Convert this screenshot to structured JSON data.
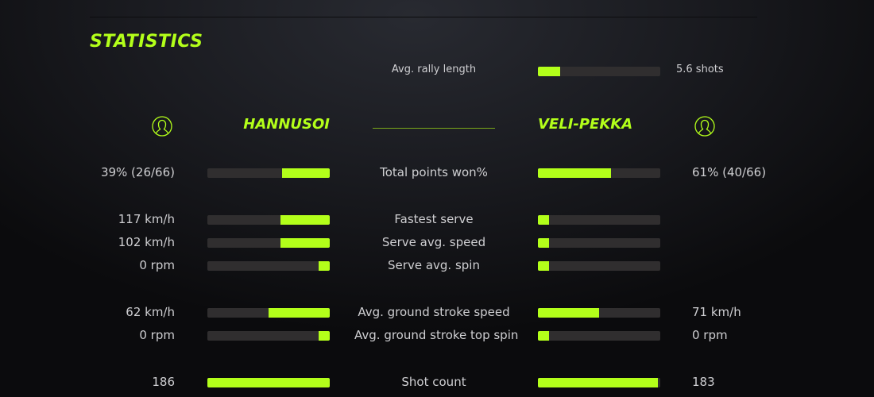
{
  "title": "STATISTICS",
  "accent": "#b3ff1a",
  "rally": {
    "label": "Avg. rally length",
    "value": "5.6 shots",
    "fill": 0.18
  },
  "players": {
    "left": {
      "name": "HANNUSOI",
      "icon": "user-circle-icon"
    },
    "right": {
      "name": "VELI-PEKKA",
      "icon": "user-circle-icon"
    }
  },
  "stats": [
    {
      "label": "Total points won%",
      "left": "39% (26/66)",
      "right": "61% (40/66)",
      "left_fill": 0.39,
      "right_fill": 0.6
    },
    {
      "label": "Fastest serve",
      "left": "117 km/h",
      "right": "",
      "left_fill": 0.4,
      "right_fill": 0.09
    },
    {
      "label": "Serve avg. speed",
      "left": "102 km/h",
      "right": "",
      "left_fill": 0.4,
      "right_fill": 0.09
    },
    {
      "label": "Serve avg. spin",
      "left": "0 rpm",
      "right": "",
      "left_fill": 0.09,
      "right_fill": 0.09
    },
    {
      "label": "Avg. ground stroke speed",
      "left": "62 km/h",
      "right": "71 km/h",
      "left_fill": 0.5,
      "right_fill": 0.5
    },
    {
      "label": "Avg. ground stroke top spin",
      "left": "0 rpm",
      "right": "0 rpm",
      "left_fill": 0.09,
      "right_fill": 0.09
    },
    {
      "label": "Shot count",
      "left": "186",
      "right": "183",
      "left_fill": 1.0,
      "right_fill": 0.98
    }
  ]
}
